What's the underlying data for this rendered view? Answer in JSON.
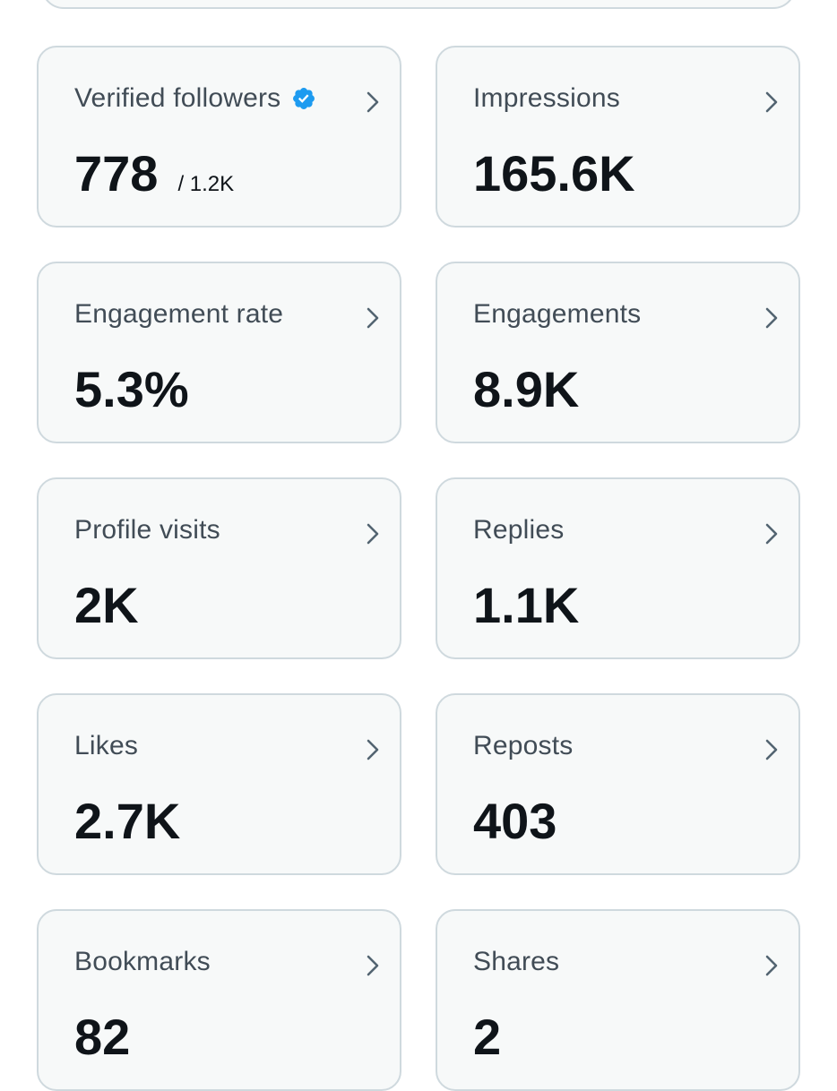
{
  "colors": {
    "card_background": "#f7f9f9",
    "card_border": "#cfd9de",
    "label_text": "#414c56",
    "value_text": "#0f1419",
    "verified_badge": "#1d9bf0",
    "chevron": "#536471"
  },
  "metrics": [
    {
      "label": "Verified followers",
      "value": "778",
      "sub": "/ 1.2K",
      "icon": "verified-badge-icon"
    },
    {
      "label": "Impressions",
      "value": "165.6K"
    },
    {
      "label": "Engagement rate",
      "value": "5.3%"
    },
    {
      "label": "Engagements",
      "value": "8.9K"
    },
    {
      "label": "Profile visits",
      "value": "2K"
    },
    {
      "label": "Replies",
      "value": "1.1K"
    },
    {
      "label": "Likes",
      "value": "2.7K"
    },
    {
      "label": "Reposts",
      "value": "403"
    },
    {
      "label": "Bookmarks",
      "value": "82"
    },
    {
      "label": "Shares",
      "value": "2"
    }
  ]
}
